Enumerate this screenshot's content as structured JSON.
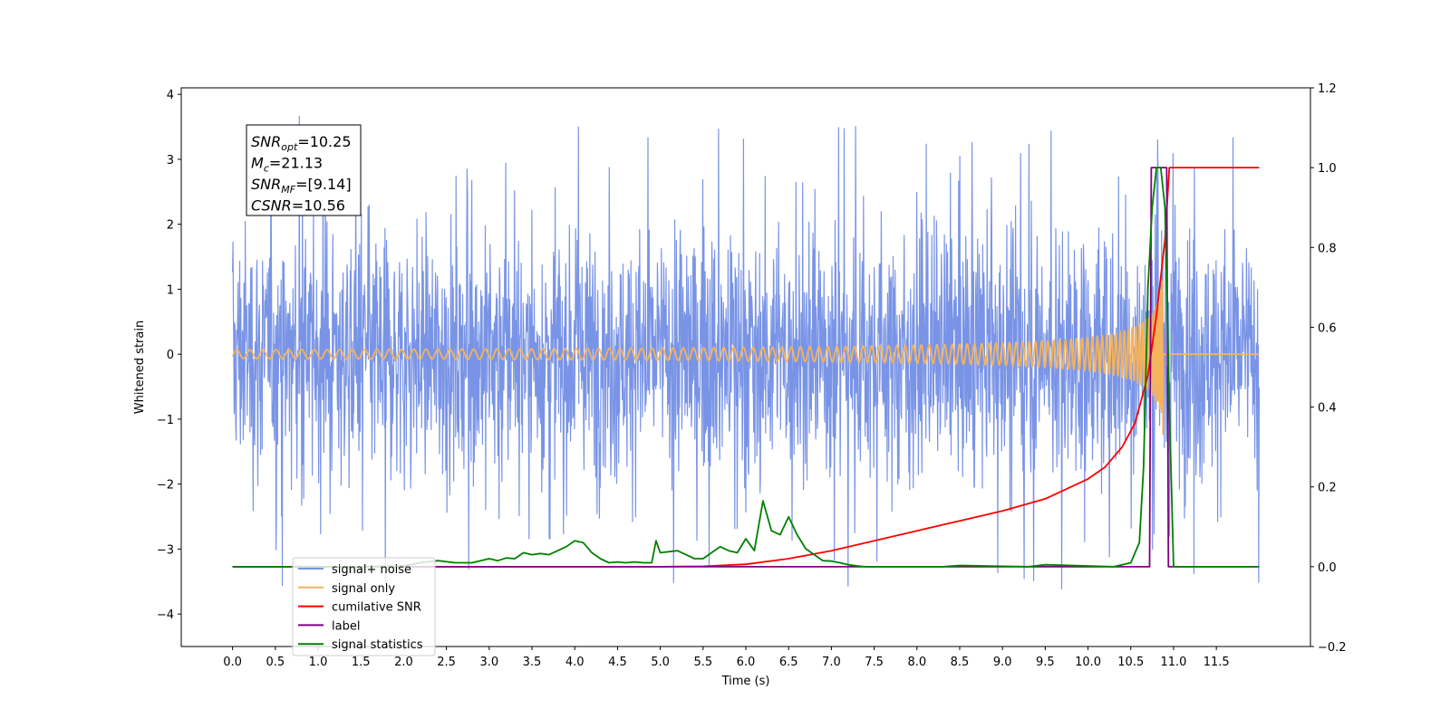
{
  "chart_data": {
    "type": "line",
    "xlabel": "Time (s)",
    "ylabel": "Whitened strain",
    "xlim": [
      -0.6,
      12.6
    ],
    "ylim_left": [
      -4.5,
      4.1
    ],
    "ylim_right": [
      -0.2,
      1.2
    ],
    "x_ticks": [
      "0.0",
      "0.5",
      "1.0",
      "1.5",
      "2.0",
      "2.5",
      "3.0",
      "3.5",
      "4.0",
      "4.5",
      "5.0",
      "5.5",
      "6.0",
      "6.5",
      "7.0",
      "7.5",
      "8.0",
      "8.5",
      "9.0",
      "9.5",
      "10.0",
      "10.5",
      "11.0",
      "11.5"
    ],
    "x_tick_values": [
      0,
      0.5,
      1,
      1.5,
      2,
      2.5,
      3,
      3.5,
      4,
      4.5,
      5,
      5.5,
      6,
      6.5,
      7,
      7.5,
      8,
      8.5,
      9,
      9.5,
      10,
      10.5,
      11,
      11.5
    ],
    "y_left_ticks": [
      "4",
      "3",
      "2",
      "1",
      "0",
      "−1",
      "−2",
      "−3",
      "−4"
    ],
    "y_left_tick_values": [
      4,
      3,
      2,
      1,
      0,
      -1,
      -2,
      -3,
      -4
    ],
    "y_right_ticks": [
      "1.2",
      "1.0",
      "0.8",
      "0.6",
      "0.4",
      "0.2",
      "0.0",
      "−0.2"
    ],
    "y_right_tick_values": [
      1.2,
      1.0,
      0.8,
      0.6,
      0.4,
      0.2,
      0.0,
      -0.2
    ],
    "grid": false,
    "legend_position": "lower-left",
    "info_box": {
      "snr_opt": "=10.25",
      "mc": "=21.13",
      "snr_mf": "=[9.14]",
      "csnr": "=10.56"
    },
    "series": [
      {
        "name": "signal+ noise",
        "axis": "left",
        "color": "#7994e6",
        "kind": "noise",
        "x_range": [
          0,
          12.0
        ],
        "std": 0.95,
        "typical_peak": 3.5
      },
      {
        "name": "signal only",
        "axis": "left",
        "color": "#f5b35c",
        "kind": "chirp",
        "x_range": [
          0,
          12.0
        ],
        "merger_time": 10.88,
        "peak_amplitude": 1.3
      },
      {
        "name": "cumilative SNR",
        "axis": "right",
        "color": "#ff0000",
        "x": [
          0,
          5,
          5.5,
          6,
          6.5,
          7,
          7.5,
          8,
          8.5,
          9,
          9.5,
          10,
          10.2,
          10.4,
          10.55,
          10.7,
          10.8,
          10.9,
          10.95,
          11.0,
          12.0
        ],
        "y": [
          0,
          0,
          0.001,
          0.006,
          0.02,
          0.04,
          0.065,
          0.09,
          0.115,
          0.14,
          0.17,
          0.22,
          0.25,
          0.3,
          0.36,
          0.48,
          0.63,
          0.82,
          1.0,
          1.0,
          1.0
        ]
      },
      {
        "name": "label",
        "axis": "right",
        "color": "#800080",
        "x": [
          0,
          10.72,
          10.74,
          10.92,
          10.94,
          12.0
        ],
        "y": [
          0,
          0,
          1,
          1,
          0,
          0
        ]
      },
      {
        "name": "signal statistics",
        "axis": "right",
        "color": "#008000",
        "x": [
          0,
          1.5,
          2.0,
          2.2,
          2.4,
          2.6,
          2.8,
          3.0,
          3.1,
          3.2,
          3.3,
          3.4,
          3.5,
          3.6,
          3.7,
          3.8,
          3.9,
          4.0,
          4.1,
          4.2,
          4.3,
          4.4,
          4.5,
          4.6,
          4.7,
          4.8,
          4.9,
          4.95,
          5.0,
          5.2,
          5.4,
          5.5,
          5.6,
          5.7,
          5.8,
          5.9,
          6.0,
          6.1,
          6.2,
          6.3,
          6.4,
          6.5,
          6.6,
          6.7,
          6.8,
          6.9,
          7.0,
          7.1,
          7.2,
          7.3,
          7.4,
          7.6,
          8.3,
          8.5,
          9.3,
          9.5,
          10.3,
          10.5,
          10.6,
          10.65,
          10.7,
          10.75,
          10.8,
          10.85,
          10.9,
          10.95,
          11.0,
          12.0
        ],
        "y": [
          0,
          0,
          0.002,
          0.01,
          0.015,
          0.01,
          0.01,
          0.02,
          0.015,
          0.022,
          0.02,
          0.035,
          0.03,
          0.033,
          0.03,
          0.04,
          0.05,
          0.065,
          0.06,
          0.035,
          0.02,
          0.01,
          0.012,
          0.01,
          0.012,
          0.01,
          0.01,
          0.065,
          0.035,
          0.04,
          0.02,
          0.02,
          0.035,
          0.05,
          0.04,
          0.035,
          0.07,
          0.04,
          0.165,
          0.09,
          0.08,
          0.125,
          0.08,
          0.045,
          0.03,
          0.015,
          0.014,
          0.01,
          0.005,
          0.002,
          0,
          0,
          0,
          0.003,
          0,
          0.005,
          0,
          0.01,
          0.06,
          0.25,
          0.7,
          0.9,
          1.0,
          1.0,
          0.9,
          0.4,
          0,
          0
        ]
      }
    ]
  }
}
